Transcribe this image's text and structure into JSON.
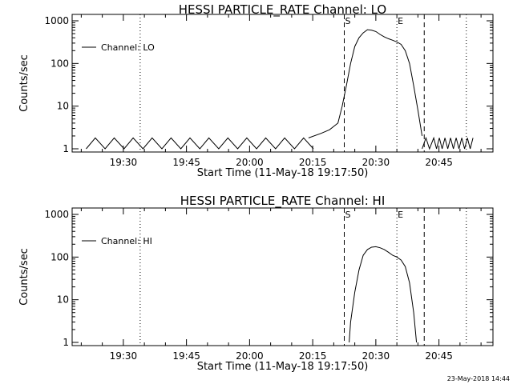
{
  "chart_data": [
    {
      "type": "line",
      "title": "HESSI PARTICLE_RATE Channel: LO",
      "xlabel": "Start Time (11-May-18 19:17:50)",
      "ylabel": "Counts/sec",
      "yscale": "log",
      "xlim": [
        "19:17:50",
        "20:57:50"
      ],
      "ylim": [
        1,
        1000
      ],
      "x_tick_labels": [
        "19:30",
        "19:45",
        "20:00",
        "20:15",
        "20:30",
        "20:45"
      ],
      "y_tick_labels": [
        "1",
        "10",
        "100",
        "1000"
      ],
      "legend": {
        "entries": [
          "Channel: LO"
        ],
        "placement": "top-left"
      },
      "vlines": [
        {
          "time": "19:34:00",
          "style": "dotted"
        },
        {
          "time": "20:22:30",
          "style": "dashed",
          "label": "S"
        },
        {
          "time": "20:35:00",
          "style": "dotted",
          "label": "E"
        },
        {
          "time": "20:41:30",
          "style": "dashed"
        },
        {
          "time": "20:51:30",
          "style": "dotted"
        }
      ],
      "series": [
        {
          "name": "Channel: LO",
          "x": [
            "20:14:00",
            "20:17:00",
            "20:19:00",
            "20:21:00",
            "20:22:00",
            "20:23:00",
            "20:24:00",
            "20:25:00",
            "20:26:00",
            "20:27:00",
            "20:28:00",
            "20:29:00",
            "20:30:00",
            "20:31:00",
            "20:32:00",
            "20:33:00",
            "20:34:00",
            "20:35:00",
            "20:36:00",
            "20:37:00",
            "20:38:00",
            "20:39:00",
            "20:40:00",
            "20:41:00"
          ],
          "y": [
            1.8,
            2.3,
            2.8,
            4,
            10,
            30,
            100,
            250,
            400,
            520,
            620,
            600,
            560,
            480,
            420,
            380,
            350,
            320,
            280,
            200,
            100,
            30,
            8,
            2
          ]
        }
      ]
    },
    {
      "type": "line",
      "title": "HESSI PARTICLE_RATE Channel: HI",
      "xlabel": "Start Time (11-May-18 19:17:50)",
      "ylabel": "Counts/sec",
      "yscale": "log",
      "xlim": [
        "19:17:50",
        "20:57:50"
      ],
      "ylim": [
        1,
        1000
      ],
      "x_tick_labels": [
        "19:30",
        "19:45",
        "20:00",
        "20:15",
        "20:30",
        "20:45"
      ],
      "y_tick_labels": [
        "1",
        "10",
        "100",
        "1000"
      ],
      "legend": {
        "entries": [
          "Channel: HI"
        ],
        "placement": "top-left"
      },
      "vlines": [
        {
          "time": "19:34:00",
          "style": "dotted"
        },
        {
          "time": "20:22:30",
          "style": "dashed",
          "label": "S"
        },
        {
          "time": "20:35:00",
          "style": "dotted",
          "label": "E"
        },
        {
          "time": "20:41:30",
          "style": "dashed"
        },
        {
          "time": "20:51:30",
          "style": "dotted"
        }
      ],
      "series": [
        {
          "name": "Channel: HI",
          "x": [
            "20:23:40",
            "20:24:00",
            "20:25:00",
            "20:26:00",
            "20:27:00",
            "20:28:00",
            "20:29:00",
            "20:30:00",
            "20:31:00",
            "20:32:00",
            "20:33:00",
            "20:34:00",
            "20:35:00",
            "20:36:00",
            "20:37:00",
            "20:38:00",
            "20:39:00",
            "20:39:40"
          ],
          "y": [
            1,
            3,
            15,
            50,
            110,
            150,
            170,
            175,
            165,
            150,
            130,
            110,
            100,
            85,
            60,
            25,
            5,
            1
          ]
        }
      ]
    }
  ],
  "footer": {
    "stamp": "23-May-2018 14:44"
  }
}
